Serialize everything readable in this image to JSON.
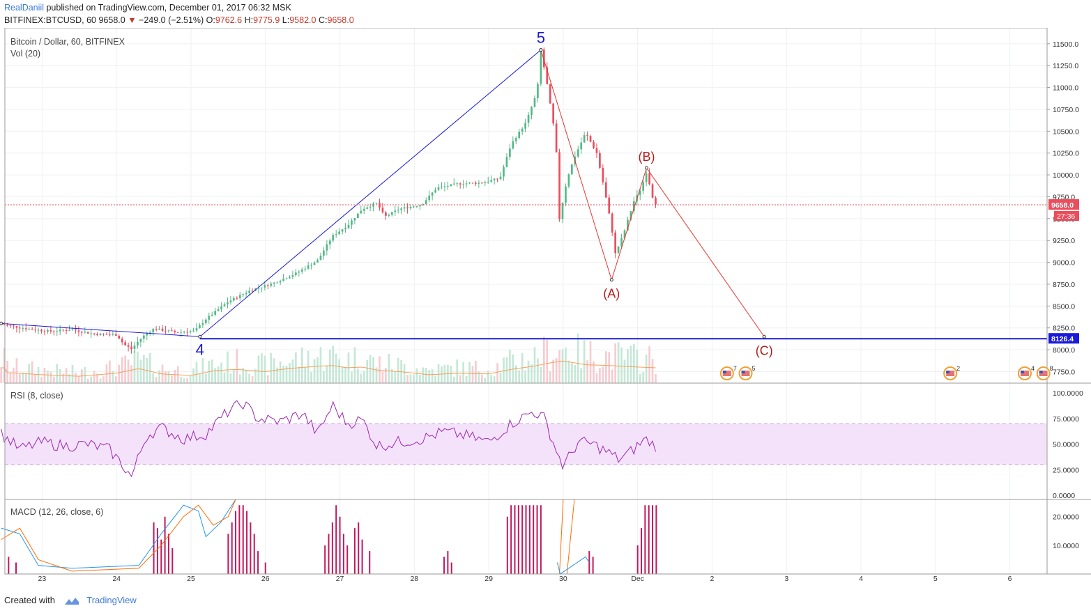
{
  "header": {
    "author": "RealDaniil",
    "published": " published on TradingView.com, December 01, 2017 06:32 MSK",
    "symbol": "BITFINEX:BTCUSD, 60",
    "last": "9658.0",
    "change_arrow": "▼",
    "change": "−249.0 (−2.51%)",
    "o_label": "O:",
    "o": "9762.6",
    "h_label": "H:",
    "h": "9775.9",
    "l_label": "L:",
    "l": "9582.0",
    "c_label": "C:",
    "c": "9658.0"
  },
  "panes": {
    "main_title": "Bitcoin / Dollar, 60, BITFINEX",
    "vol_title": "Vol (20)",
    "rsi_title": "RSI (8, close)",
    "macd_title": "MACD (12, 26, close, 6)"
  },
  "footer": {
    "created_with": "Created with",
    "brand": "TradingView"
  },
  "colors": {
    "up": "#53b987",
    "down": "#eb4d5c",
    "wave_blue": "#1a1adb",
    "wave_red": "#e8352e",
    "rsi_line": "#9c27b0",
    "rsi_band": "#f4e2fb",
    "macd_hist": "#c2185b",
    "macd_line": "#2196f3",
    "signal_line": "#ff6d00",
    "ma_vol": "#f5a05a"
  },
  "chart_data": {
    "type": "candlestick",
    "x_ticks": [
      "23",
      "24",
      "25",
      "26",
      "27",
      "28",
      "29",
      "30",
      "Dec",
      "2",
      "3",
      "4",
      "5",
      "6"
    ],
    "price_axis": {
      "ticks": [
        "7750.0",
        "8000.0",
        "8250.0",
        "8500.0",
        "8750.0",
        "9000.0",
        "9250.0",
        "9500.0",
        "9750.0",
        "10000.0",
        "10250.0",
        "10500.0",
        "10750.0",
        "11000.0",
        "11250.0",
        "11500.0"
      ],
      "ylim": [
        7650,
        11650
      ]
    },
    "last_price_label": "9658.0",
    "countdown_label": "27:36",
    "level_label": "8126.4",
    "horizontal_level": 8126.4,
    "price_path": [
      [
        22.45,
        8290
      ],
      [
        22.8,
        8240
      ],
      [
        23.1,
        8210
      ],
      [
        23.4,
        8230
      ],
      [
        23.7,
        8180
      ],
      [
        24.0,
        8170
      ],
      [
        24.1,
        8060
      ],
      [
        24.2,
        8010
      ],
      [
        24.35,
        8150
      ],
      [
        24.5,
        8240
      ],
      [
        24.8,
        8200
      ],
      [
        25.05,
        8215
      ],
      [
        25.2,
        8350
      ],
      [
        25.5,
        8550
      ],
      [
        25.8,
        8680
      ],
      [
        26.1,
        8760
      ],
      [
        26.4,
        8870
      ],
      [
        26.7,
        9020
      ],
      [
        26.9,
        9300
      ],
      [
        27.1,
        9420
      ],
      [
        27.3,
        9610
      ],
      [
        27.5,
        9680
      ],
      [
        27.6,
        9520
      ],
      [
        27.8,
        9610
      ],
      [
        28.1,
        9660
      ],
      [
        28.3,
        9850
      ],
      [
        28.6,
        9900
      ],
      [
        28.9,
        9910
      ],
      [
        29.15,
        9960
      ],
      [
        29.3,
        10350
      ],
      [
        29.5,
        10600
      ],
      [
        29.65,
        10950
      ],
      [
        29.7,
        11430
      ],
      [
        29.78,
        11050
      ],
      [
        29.9,
        10400
      ],
      [
        29.95,
        9500
      ],
      [
        30.05,
        9950
      ],
      [
        30.15,
        10200
      ],
      [
        30.3,
        10480
      ],
      [
        30.45,
        10250
      ],
      [
        30.55,
        9850
      ],
      [
        30.65,
        9400
      ],
      [
        30.7,
        9100
      ],
      [
        30.8,
        9300
      ],
      [
        30.95,
        9700
      ],
      [
        31.05,
        9850
      ],
      [
        31.12,
        10040
      ],
      [
        31.2,
        9750
      ],
      [
        31.25,
        9658
      ]
    ],
    "volume_series": [
      [
        22.5,
        28
      ],
      [
        23.0,
        22
      ],
      [
        23.5,
        18
      ],
      [
        24.0,
        26
      ],
      [
        24.3,
        38
      ],
      [
        24.6,
        24
      ],
      [
        25.0,
        20
      ],
      [
        25.3,
        32
      ],
      [
        25.6,
        36
      ],
      [
        26.0,
        30
      ],
      [
        26.3,
        38
      ],
      [
        26.7,
        44
      ],
      [
        26.9,
        46
      ],
      [
        27.1,
        40
      ],
      [
        27.3,
        42
      ],
      [
        27.5,
        34
      ],
      [
        27.8,
        30
      ],
      [
        28.2,
        22
      ],
      [
        28.6,
        26
      ],
      [
        29.0,
        24
      ],
      [
        29.3,
        36
      ],
      [
        29.6,
        44
      ],
      [
        29.8,
        52
      ],
      [
        30.0,
        58
      ],
      [
        30.3,
        48
      ],
      [
        30.6,
        46
      ],
      [
        30.8,
        44
      ],
      [
        31.0,
        42
      ],
      [
        31.25,
        40
      ]
    ],
    "wave_labels": [
      {
        "label": "5",
        "x": 29.7,
        "price": 11430
      },
      {
        "label": "4",
        "x": 25.12,
        "price": 8150
      },
      {
        "label": "(A)",
        "x": 30.65,
        "price": 8800
      },
      {
        "label": "(B)",
        "x": 31.12,
        "price": 10080
      },
      {
        "label": "(C)",
        "x": 32.7,
        "price": 8150
      }
    ],
    "wave_lines": {
      "blue": [
        [
          22.45,
          8300
        ],
        [
          25.12,
          8150
        ],
        [
          29.7,
          11430
        ]
      ],
      "red": [
        [
          29.7,
          11430
        ],
        [
          30.65,
          8800
        ],
        [
          31.12,
          10080
        ],
        [
          32.7,
          8150
        ]
      ]
    },
    "rsi": {
      "ticks": [
        "0.0000",
        "25.0000",
        "50.0000",
        "75.0000",
        "100.0000"
      ],
      "band": [
        30,
        70
      ],
      "values": [
        [
          22.45,
          60
        ],
        [
          22.7,
          45
        ],
        [
          23.0,
          52
        ],
        [
          23.3,
          48
        ],
        [
          23.6,
          50
        ],
        [
          23.9,
          45
        ],
        [
          24.1,
          28
        ],
        [
          24.2,
          18
        ],
        [
          24.4,
          58
        ],
        [
          24.6,
          66
        ],
        [
          24.9,
          55
        ],
        [
          25.2,
          60
        ],
        [
          25.5,
          82
        ],
        [
          25.7,
          90
        ],
        [
          25.9,
          75
        ],
        [
          26.2,
          72
        ],
        [
          26.5,
          80
        ],
        [
          26.7,
          60
        ],
        [
          26.9,
          88
        ],
        [
          27.1,
          70
        ],
        [
          27.3,
          74
        ],
        [
          27.5,
          48
        ],
        [
          27.8,
          52
        ],
        [
          28.1,
          55
        ],
        [
          28.4,
          62
        ],
        [
          28.7,
          58
        ],
        [
          29.0,
          52
        ],
        [
          29.3,
          70
        ],
        [
          29.6,
          82
        ],
        [
          29.75,
          75
        ],
        [
          29.9,
          45
        ],
        [
          30.0,
          28
        ],
        [
          30.2,
          52
        ],
        [
          30.4,
          50
        ],
        [
          30.6,
          42
        ],
        [
          30.75,
          35
        ],
        [
          30.9,
          42
        ],
        [
          31.1,
          55
        ],
        [
          31.25,
          48
        ]
      ]
    },
    "macd": {
      "ticks": [
        "10.0000",
        "20.0000"
      ],
      "hist": [
        [
          22.55,
          6
        ],
        [
          22.65,
          4
        ],
        [
          24.5,
          18
        ],
        [
          24.55,
          16
        ],
        [
          24.6,
          12
        ],
        [
          24.65,
          20
        ],
        [
          24.7,
          14
        ],
        [
          24.75,
          9
        ],
        [
          25.5,
          14
        ],
        [
          25.55,
          18
        ],
        [
          25.6,
          22
        ],
        [
          25.65,
          24
        ],
        [
          25.7,
          24
        ],
        [
          25.75,
          22
        ],
        [
          25.8,
          18
        ],
        [
          25.85,
          14
        ],
        [
          25.9,
          8
        ],
        [
          26.0,
          4
        ],
        [
          26.8,
          10
        ],
        [
          26.85,
          14
        ],
        [
          26.9,
          18
        ],
        [
          26.95,
          24
        ],
        [
          27.0,
          20
        ],
        [
          27.05,
          14
        ],
        [
          27.1,
          10
        ],
        [
          27.2,
          16
        ],
        [
          27.25,
          18
        ],
        [
          27.3,
          12
        ],
        [
          27.4,
          8
        ],
        [
          28.4,
          6
        ],
        [
          28.45,
          8
        ],
        [
          28.5,
          4
        ],
        [
          29.25,
          20
        ],
        [
          29.3,
          24
        ],
        [
          29.35,
          24
        ],
        [
          29.4,
          24
        ],
        [
          29.45,
          24
        ],
        [
          29.5,
          24
        ],
        [
          29.55,
          24
        ],
        [
          29.6,
          24
        ],
        [
          29.65,
          24
        ],
        [
          29.7,
          24
        ],
        [
          30.35,
          8
        ],
        [
          30.4,
          6
        ],
        [
          31.0,
          10
        ],
        [
          31.05,
          16
        ],
        [
          31.1,
          24
        ],
        [
          31.15,
          24
        ],
        [
          31.2,
          24
        ],
        [
          31.25,
          24
        ]
      ]
    }
  }
}
